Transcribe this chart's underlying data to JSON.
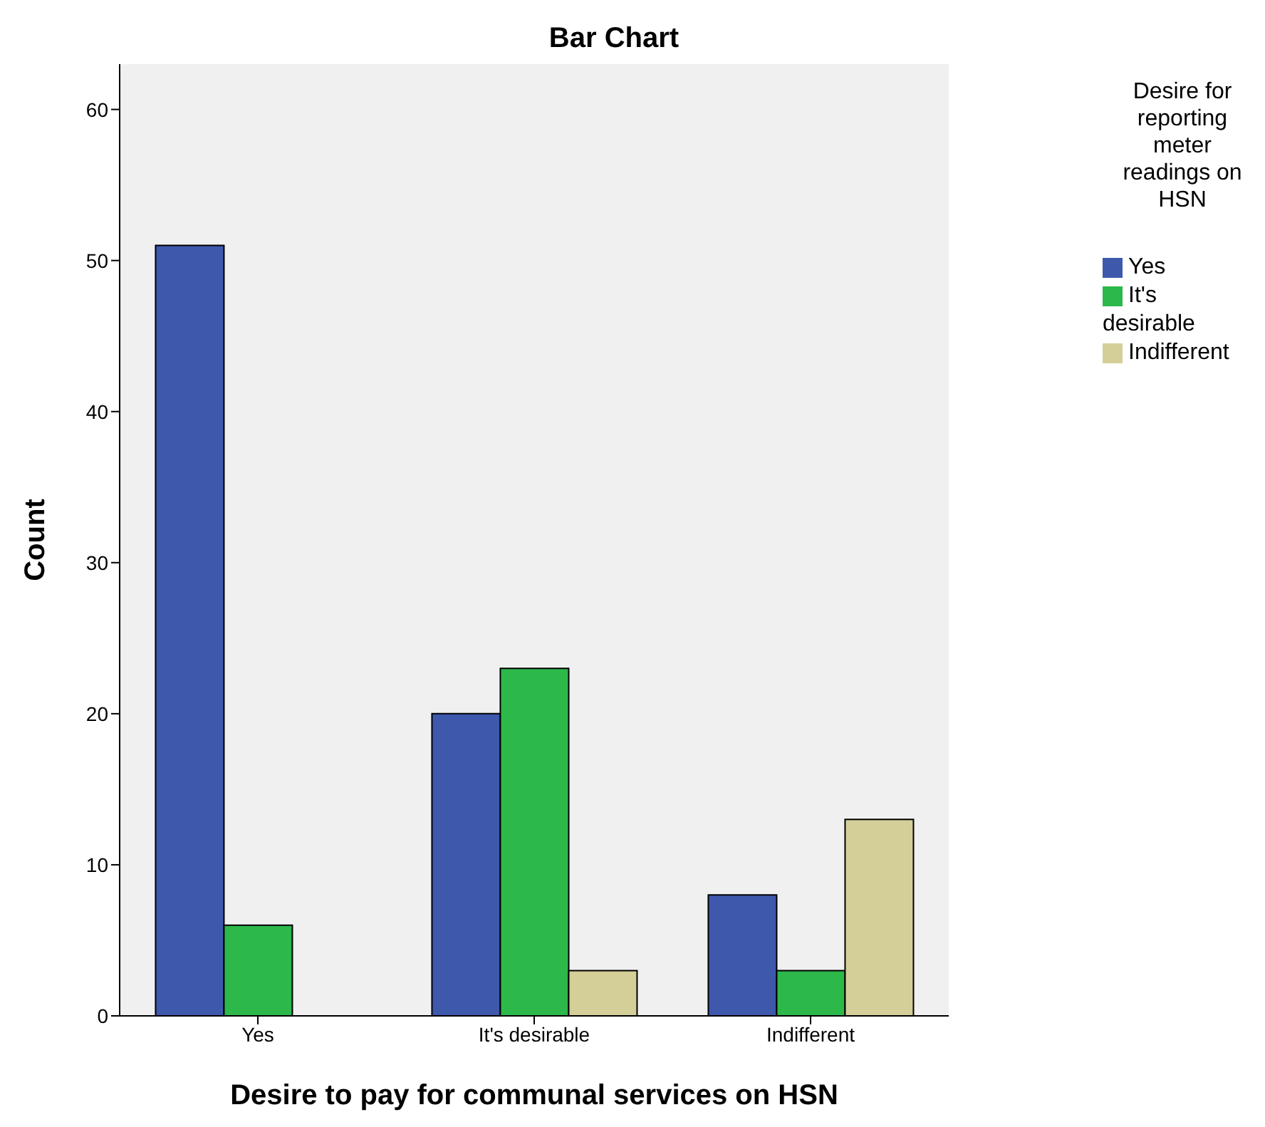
{
  "chart_data": {
    "type": "bar",
    "title": "Bar Chart",
    "xlabel": "Desire to pay for communal services on HSN",
    "ylabel": "Count",
    "legend_title": "Desire for reporting meter readings on HSN",
    "categories": [
      "Yes",
      "It's desirable",
      "Indifferent"
    ],
    "series": [
      {
        "name": "Yes",
        "color": "#3e58ac",
        "values": [
          51,
          20,
          8
        ]
      },
      {
        "name": "It's desirable",
        "color": "#2db84a",
        "values": [
          6,
          23,
          3
        ]
      },
      {
        "name": "Indifferent",
        "color": "#d4cf98",
        "values": [
          null,
          3,
          13
        ]
      }
    ],
    "ylim": [
      0,
      63
    ],
    "yticks": [
      0,
      10,
      20,
      30,
      40,
      50,
      60
    ],
    "grid": false,
    "legend": "top right"
  }
}
